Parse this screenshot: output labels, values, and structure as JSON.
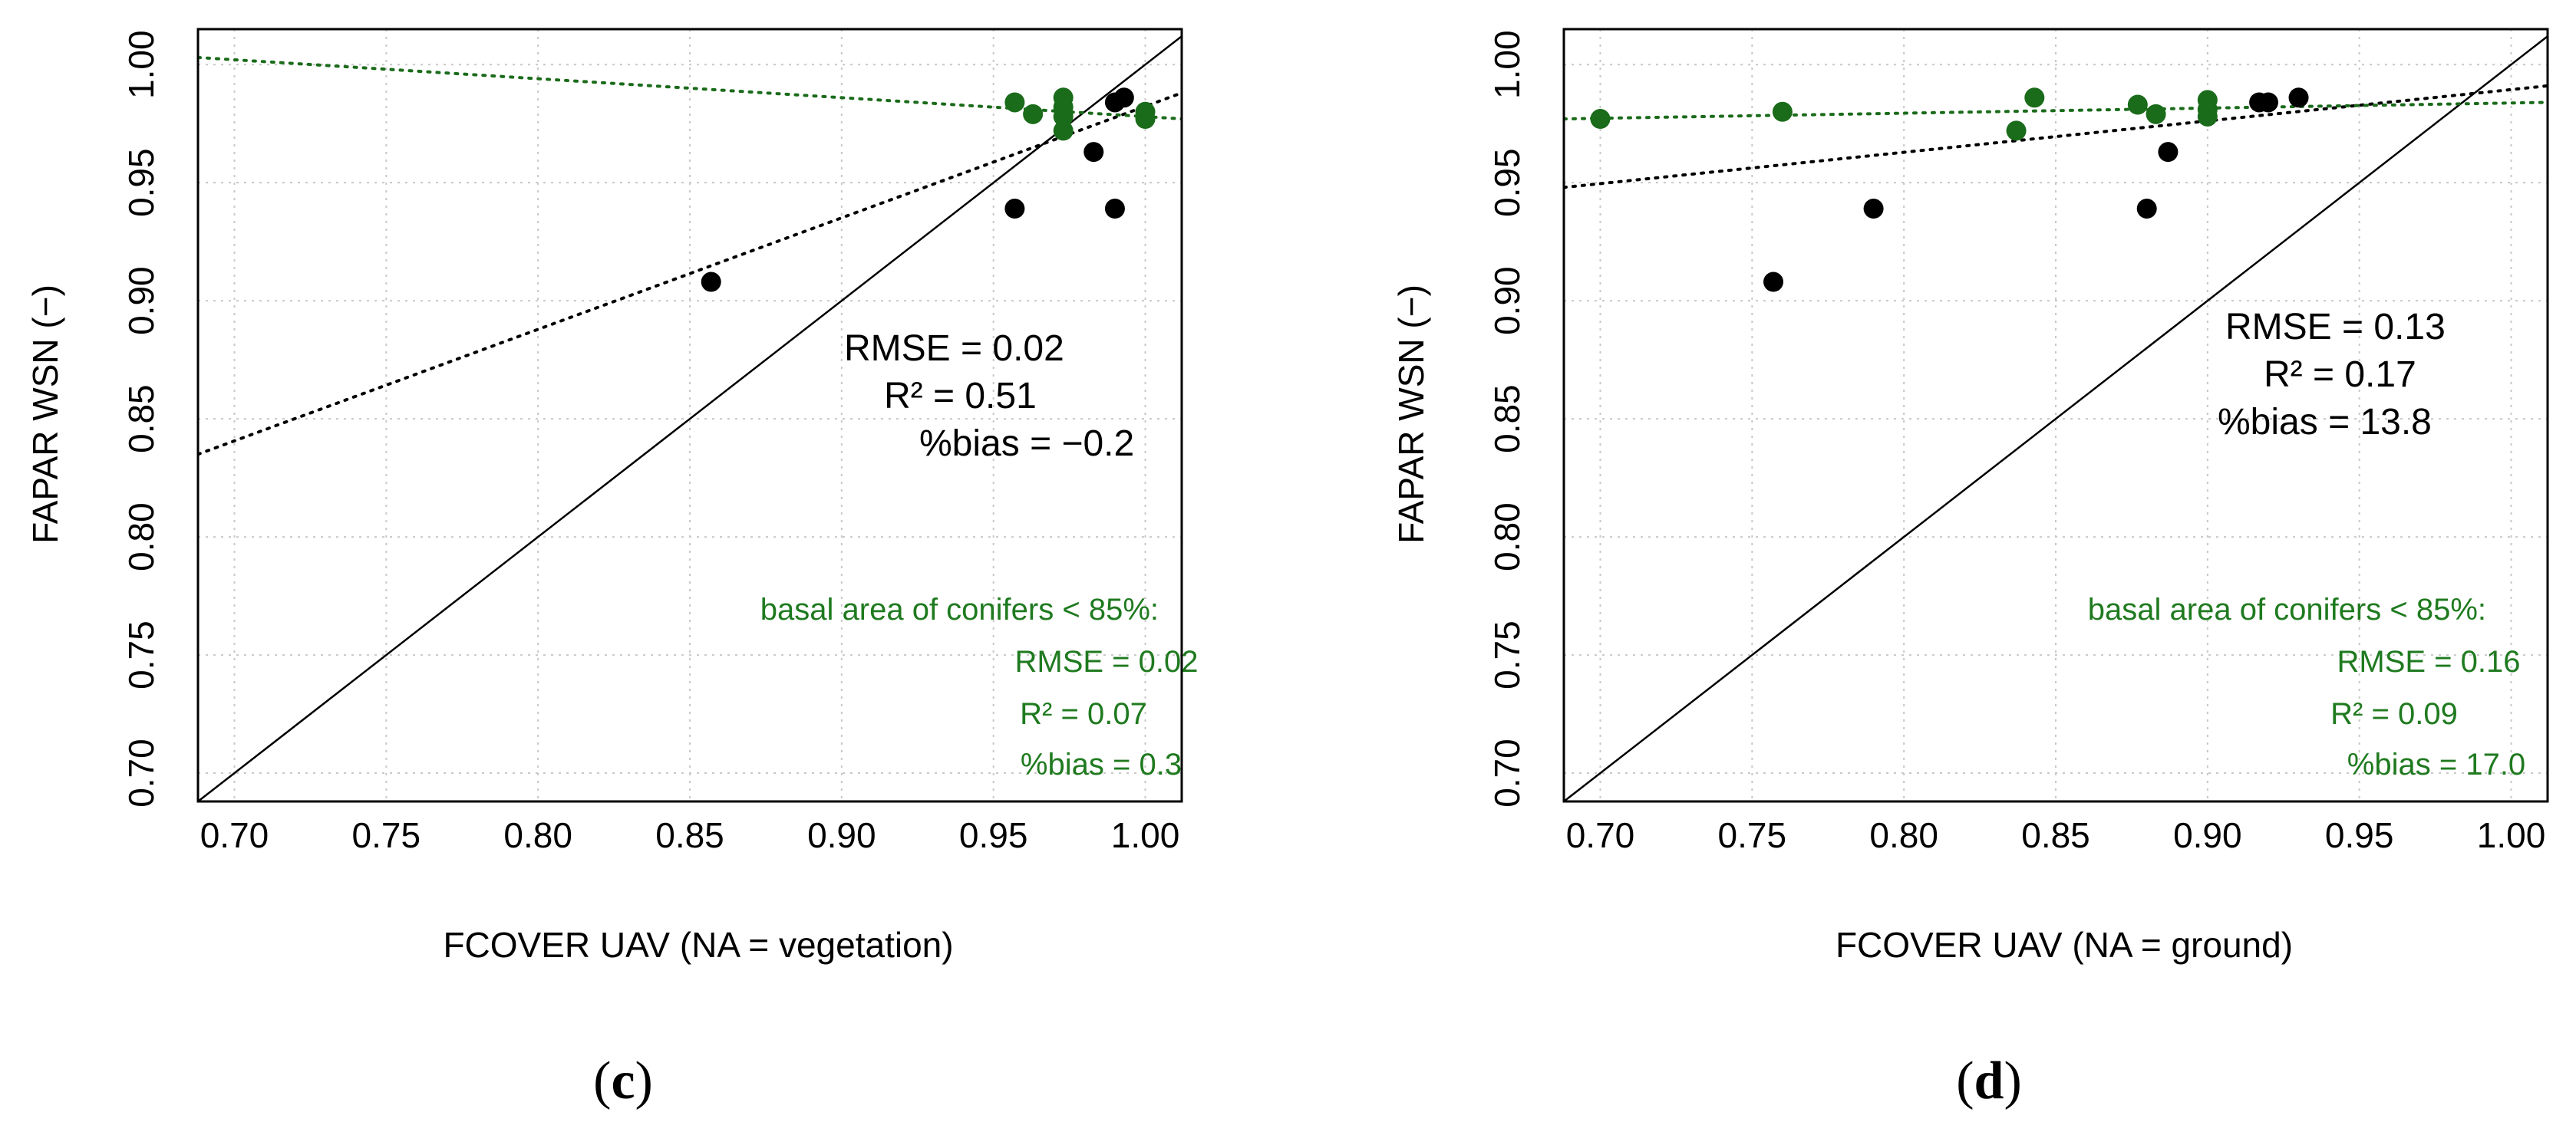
{
  "colors": {
    "black_points": "#000000",
    "green_points": "#1a6b1a",
    "green_text": "#1f7a1f",
    "grid": "#c8c8c8"
  },
  "chart_data": [
    {
      "type": "scatter",
      "panel_label": "c",
      "xlabel": "FCOVER UAV (NA = vegetation)",
      "ylabel": "FAPAR WSN (−)",
      "xlim": [
        0.688,
        1.012
      ],
      "ylim": [
        0.688,
        1.015
      ],
      "xticks": [
        0.7,
        0.75,
        0.8,
        0.85,
        0.9,
        0.95,
        1.0
      ],
      "xtick_labels": [
        "0.70",
        "0.75",
        "0.80",
        "0.85",
        "0.90",
        "0.95",
        "1.00"
      ],
      "yticks": [
        0.7,
        0.75,
        0.8,
        0.85,
        0.9,
        0.95,
        1.0
      ],
      "ytick_labels": [
        "0.70",
        "0.75",
        "0.80",
        "0.85",
        "0.90",
        "0.95",
        "1.00"
      ],
      "grid": true,
      "series": [
        {
          "color": "#000000",
          "points": [
            [
              0.857,
              0.908
            ],
            [
              0.957,
              0.939
            ],
            [
              0.983,
              0.963
            ],
            [
              0.99,
              0.939
            ],
            [
              0.99,
              0.984
            ],
            [
              0.993,
              0.986
            ]
          ]
        },
        {
          "color": "#1a6b1a",
          "points": [
            [
              0.957,
              0.984
            ],
            [
              0.963,
              0.979
            ],
            [
              0.973,
              0.986
            ],
            [
              0.973,
              0.982
            ],
            [
              0.973,
              0.978
            ],
            [
              0.973,
              0.972
            ],
            [
              1.0,
              0.98
            ],
            [
              1.0,
              0.977
            ]
          ]
        }
      ],
      "lines": [
        {
          "style": "solid",
          "color": "#000000",
          "x": [
            0.688,
            1.012
          ],
          "y": [
            0.688,
            1.012
          ]
        },
        {
          "style": "dotted",
          "color": "#000000",
          "x": [
            0.688,
            1.012
          ],
          "y": [
            0.835,
            0.988
          ]
        },
        {
          "style": "dotted",
          "color": "#1a6b1a",
          "x": [
            0.688,
            1.012
          ],
          "y": [
            1.003,
            0.977
          ]
        }
      ],
      "stats_all": [
        "RMSE = 0.02",
        "R² = 0.51",
        "%bias = −0.2"
      ],
      "stats_subset_title": "basal area of conifers < 85%:",
      "stats_subset": [
        "RMSE = 0.02",
        "R² = 0.07",
        "%bias = 0.3"
      ]
    },
    {
      "type": "scatter",
      "panel_label": "d",
      "xlabel": "FCOVER UAV (NA = ground)",
      "ylabel": "FAPAR WSN (−)",
      "xlim": [
        0.688,
        1.012
      ],
      "ylim": [
        0.688,
        1.015
      ],
      "xticks": [
        0.7,
        0.75,
        0.8,
        0.85,
        0.9,
        0.95,
        1.0
      ],
      "xtick_labels": [
        "0.70",
        "0.75",
        "0.80",
        "0.85",
        "0.90",
        "0.95",
        "1.00"
      ],
      "yticks": [
        0.7,
        0.75,
        0.8,
        0.85,
        0.9,
        0.95,
        1.0
      ],
      "ytick_labels": [
        "0.70",
        "0.75",
        "0.80",
        "0.85",
        "0.90",
        "0.95",
        "1.00"
      ],
      "grid": true,
      "series": [
        {
          "color": "#000000",
          "points": [
            [
              0.757,
              0.908
            ],
            [
              0.79,
              0.939
            ],
            [
              0.88,
              0.939
            ],
            [
              0.887,
              0.963
            ],
            [
              0.917,
              0.984
            ],
            [
              0.92,
              0.984
            ],
            [
              0.93,
              0.986
            ]
          ]
        },
        {
          "color": "#1a6b1a",
          "points": [
            [
              0.7,
              0.977
            ],
            [
              0.76,
              0.98
            ],
            [
              0.837,
              0.972
            ],
            [
              0.843,
              0.986
            ],
            [
              0.877,
              0.983
            ],
            [
              0.883,
              0.979
            ],
            [
              0.9,
              0.985
            ],
            [
              0.9,
              0.981
            ],
            [
              0.9,
              0.978
            ]
          ]
        }
      ],
      "lines": [
        {
          "style": "solid",
          "color": "#000000",
          "x": [
            0.688,
            1.012
          ],
          "y": [
            0.688,
            1.012
          ]
        },
        {
          "style": "dotted",
          "color": "#000000",
          "x": [
            0.688,
            1.012
          ],
          "y": [
            0.948,
            0.991
          ]
        },
        {
          "style": "dotted",
          "color": "#1a6b1a",
          "x": [
            0.688,
            1.012
          ],
          "y": [
            0.977,
            0.984
          ]
        }
      ],
      "stats_all": [
        "RMSE = 0.13",
        "R² = 0.17",
        "%bias = 13.8"
      ],
      "stats_subset_title": "basal area of conifers < 85%:",
      "stats_subset": [
        "RMSE = 0.16",
        "R² = 0.09",
        "%bias = 17.0"
      ]
    }
  ]
}
